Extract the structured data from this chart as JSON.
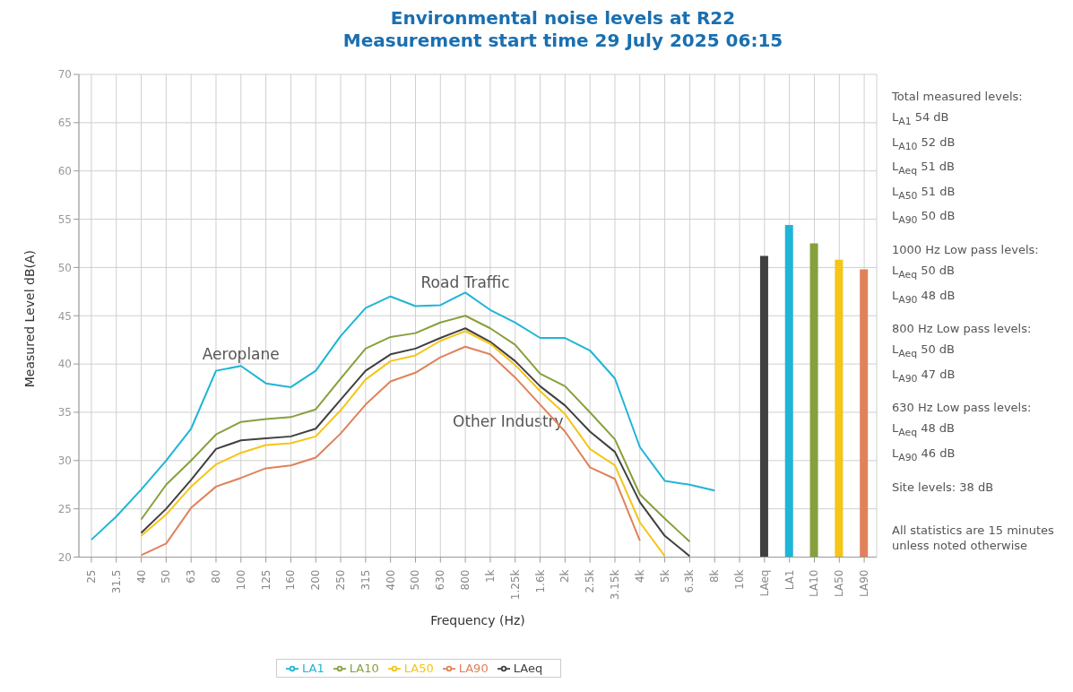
{
  "chart_data": {
    "type": "line",
    "title": "Environmental noise levels at R22",
    "subtitle": "Measurement start time 29 July 2025 06:15",
    "xlabel": "Frequency (Hz)",
    "ylabel": "Measured Level dB(A)",
    "categories": [
      "25",
      "31.5",
      "40",
      "50",
      "63",
      "80",
      "100",
      "125",
      "160",
      "200",
      "250",
      "315",
      "400",
      "500",
      "630",
      "800",
      "1k",
      "1.25k",
      "1.6k",
      "2k",
      "2.5k",
      "3.15k",
      "4k",
      "5k",
      "6.3k",
      "8k",
      "10k",
      "LAeq",
      "LA1",
      "LA10",
      "LA50",
      "LA90"
    ],
    "series": [
      {
        "name": "LAeq",
        "color": "#404040",
        "values": [
          null,
          null,
          22.5,
          25,
          28,
          31.2,
          32.1,
          32.3,
          32.5,
          33.3,
          36.3,
          39.3,
          41,
          41.6,
          42.7,
          43.7,
          42.3,
          40.3,
          37.7,
          35.7,
          33,
          30.9,
          25.7,
          22.2,
          20.1,
          null,
          null,
          null,
          null,
          null,
          null,
          null
        ]
      },
      {
        "name": "LA1",
        "color": "#1fb5d6",
        "values": [
          21.8,
          24.2,
          27,
          30,
          33.3,
          39.3,
          39.8,
          38,
          37.6,
          39.3,
          42.9,
          45.8,
          47,
          46,
          46.1,
          47.4,
          45.6,
          44.3,
          42.7,
          42.7,
          41.4,
          38.5,
          31.4,
          27.9,
          27.5,
          26.9,
          null,
          null,
          null,
          null,
          null,
          null
        ]
      },
      {
        "name": "LA10",
        "color": "#86a03c",
        "values": [
          null,
          null,
          23.9,
          27.5,
          30,
          32.7,
          34,
          34.3,
          34.5,
          35.3,
          38.5,
          41.6,
          42.8,
          43.2,
          44.3,
          45,
          43.7,
          42,
          39,
          37.7,
          35,
          32.2,
          26.5,
          24,
          21.6,
          null,
          null,
          null,
          null,
          null,
          null,
          null
        ]
      },
      {
        "name": "LA50",
        "color": "#f5c518",
        "values": [
          null,
          null,
          22.2,
          24.4,
          27.3,
          29.6,
          30.8,
          31.6,
          31.8,
          32.5,
          35.2,
          38.4,
          40.3,
          40.9,
          42.4,
          43.4,
          42.1,
          39.9,
          37.2,
          34.8,
          31.2,
          29.5,
          23.6,
          20.1,
          null,
          null,
          null,
          null,
          null,
          null,
          null,
          null
        ]
      },
      {
        "name": "LA90",
        "color": "#e0825a",
        "values": [
          null,
          null,
          20.2,
          21.4,
          25.1,
          27.3,
          28.2,
          29.2,
          29.5,
          30.3,
          32.8,
          35.8,
          38.2,
          39.1,
          40.7,
          41.8,
          41,
          38.6,
          35.8,
          33,
          29.3,
          28.1,
          21.7,
          null,
          null,
          null,
          null,
          null,
          null,
          null,
          null,
          null
        ]
      },
      {
        "type": "bar",
        "colors": [
          null,
          null,
          null,
          null,
          null,
          null,
          null,
          null,
          null,
          null,
          null,
          null,
          null,
          null,
          null,
          null,
          null,
          null,
          null,
          null,
          null,
          null,
          null,
          null,
          null,
          null,
          null,
          "#404040",
          "#1fb5d6",
          "#86a03c",
          "#f5c518",
          "#e0825a"
        ],
        "values": [
          null,
          null,
          null,
          null,
          null,
          null,
          null,
          null,
          null,
          null,
          null,
          null,
          null,
          null,
          null,
          null,
          null,
          null,
          null,
          null,
          null,
          null,
          null,
          null,
          null,
          null,
          null,
          51.2,
          54.4,
          52.5,
          50.8,
          49.8
        ]
      }
    ],
    "ylim": [
      20,
      70
    ],
    "yticks": [
      20,
      25,
      30,
      35,
      40,
      45,
      50,
      55,
      60,
      65,
      70
    ],
    "grid": true,
    "legend": "bottom",
    "annotations": [
      {
        "text": "Aeroplane",
        "x": "100",
        "y": 40
      },
      {
        "text": "Road Traffic",
        "x": "800",
        "y": 47.4
      },
      "Other Industry",
      "Total measured levels:",
      "L$_{A1}$ 54 dB",
      "L$_{A10}$ 52 dB",
      "L$_{Aeq}$ 51 dB",
      "L$_{A50}$ 51 dB",
      "L$_{A90}$ 50 dB",
      "1000 Hz Low pass levels:",
      "L$_{Aeq}$ 50 dB",
      "L$_{A90}$ 48 dB",
      "800 Hz Low pass levels:",
      "L$_{Aeq}$ 50 dB",
      "L$_{A90}$ 47 dB",
      "630 Hz Low pass levels:",
      "L$_{Aeq}$ 48 dB",
      "L$_{A90}$ 46 dB",
      "Site levels: 38 dB",
      "All statistics are 15 minutes unless noted otherwise"
    ]
  }
}
